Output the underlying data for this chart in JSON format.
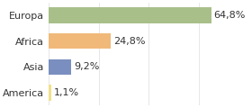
{
  "categories": [
    "America",
    "Asia",
    "Africa",
    "Europa"
  ],
  "values": [
    1.1,
    9.2,
    24.8,
    64.8
  ],
  "labels": [
    "1,1%",
    "9,2%",
    "24,8%",
    "64,8%"
  ],
  "bar_colors": [
    "#f0e08a",
    "#7a8fbf",
    "#f0b97a",
    "#a8bf8a"
  ],
  "background_color": "#ffffff",
  "xlim": [
    0,
    80
  ],
  "label_fontsize": 8.0,
  "tick_fontsize": 8.0
}
